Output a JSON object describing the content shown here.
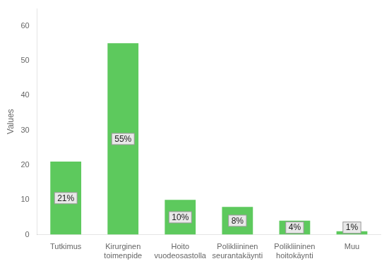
{
  "chart_data": {
    "type": "bar",
    "categories": [
      "Tutkimus",
      "Kirurginen\ntoimenpide",
      "Hoito\nvuodeosastolla",
      "Polikliininen\nseurantakäynti",
      "Polikliininen\nhoitokäynti",
      "Muu"
    ],
    "values": [
      21,
      55,
      10,
      8,
      4,
      1
    ],
    "value_labels": [
      "21%",
      "55%",
      "10%",
      "8%",
      "4%",
      "1%"
    ],
    "data_labels": true,
    "color": "#5DC95D",
    "ylabel": "Values",
    "ylim": [
      0,
      65
    ],
    "yticks": [
      0,
      10,
      20,
      30,
      40,
      50,
      60
    ],
    "grid": false
  }
}
